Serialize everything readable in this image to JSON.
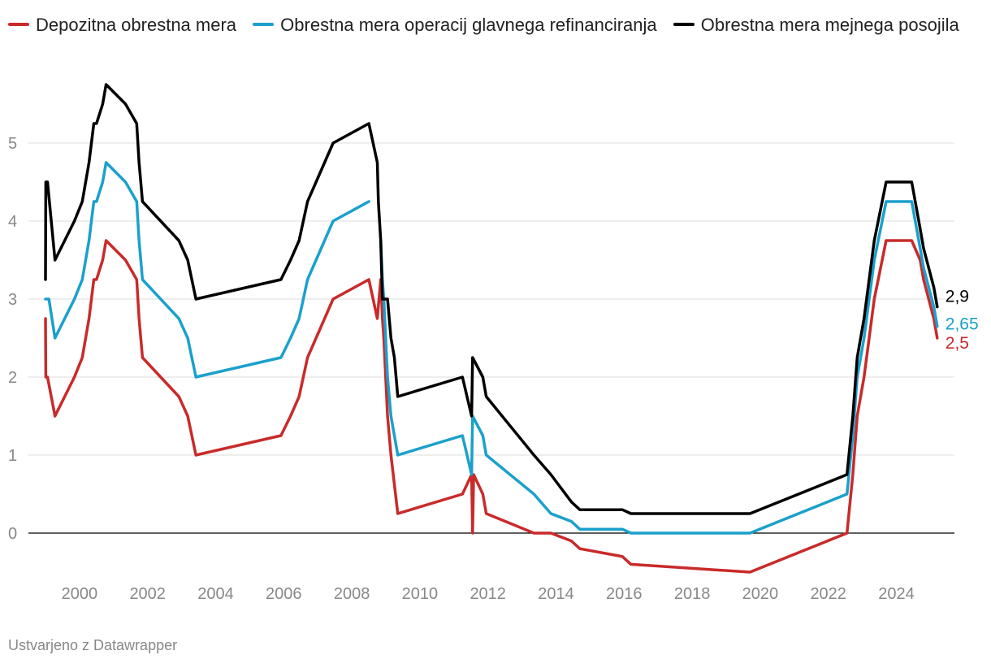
{
  "chart_data": {
    "type": "line",
    "title": "",
    "xlabel": "",
    "ylabel": "",
    "xlim": [
      1998.8,
      2026.2
    ],
    "ylim": [
      -0.6,
      5.8
    ],
    "yticks": [
      "0",
      "1",
      "2",
      "3",
      "4",
      "5"
    ],
    "xticks": [
      "2000",
      "2002",
      "2004",
      "2006",
      "2008",
      "2010",
      "2012",
      "2014",
      "2016",
      "2018",
      "2020",
      "2022",
      "2024"
    ],
    "legend_position": "top",
    "series": [
      {
        "name": "Depozitna obrestna mera",
        "color": "#c92a2a",
        "end_label": "2,5",
        "points": [
          [
            1999.0,
            2.75
          ],
          [
            1999.01,
            2.0
          ],
          [
            1999.06,
            2.0
          ],
          [
            1999.28,
            1.5
          ],
          [
            1999.85,
            2.0
          ],
          [
            2000.08,
            2.25
          ],
          [
            2000.28,
            2.75
          ],
          [
            2000.42,
            3.25
          ],
          [
            2000.5,
            3.25
          ],
          [
            2000.68,
            3.5
          ],
          [
            2000.78,
            3.75
          ],
          [
            2001.35,
            3.5
          ],
          [
            2001.68,
            3.25
          ],
          [
            2001.75,
            2.75
          ],
          [
            2001.85,
            2.25
          ],
          [
            2002.92,
            1.75
          ],
          [
            2003.18,
            1.5
          ],
          [
            2003.42,
            1.0
          ],
          [
            2005.92,
            1.25
          ],
          [
            2006.2,
            1.5
          ],
          [
            2006.45,
            1.75
          ],
          [
            2006.7,
            2.25
          ],
          [
            2006.95,
            2.5
          ],
          [
            2007.45,
            3.0
          ],
          [
            2008.5,
            3.25
          ],
          [
            2008.75,
            2.75
          ],
          [
            2008.85,
            3.25
          ],
          [
            2008.9,
            2.75
          ],
          [
            2008.94,
            2.5
          ],
          [
            2009.05,
            1.5
          ],
          [
            2009.15,
            1.0
          ],
          [
            2009.35,
            0.25
          ],
          [
            2011.25,
            0.5
          ],
          [
            2011.52,
            0.75
          ],
          [
            2011.55,
            0.0
          ],
          [
            2011.58,
            0.75
          ],
          [
            2011.85,
            0.5
          ],
          [
            2011.95,
            0.25
          ],
          [
            2013.35,
            0.0
          ],
          [
            2013.85,
            0.0
          ],
          [
            2014.45,
            -0.1
          ],
          [
            2014.7,
            -0.2
          ],
          [
            2015.95,
            -0.3
          ],
          [
            2016.2,
            -0.4
          ],
          [
            2019.7,
            -0.5
          ],
          [
            2022.55,
            0.0
          ],
          [
            2022.72,
            0.75
          ],
          [
            2022.85,
            1.5
          ],
          [
            2023.05,
            2.0
          ],
          [
            2023.2,
            2.5
          ],
          [
            2023.35,
            3.0
          ],
          [
            2023.7,
            3.75
          ],
          [
            2024.45,
            3.75
          ],
          [
            2024.7,
            3.5
          ],
          [
            2024.8,
            3.25
          ],
          [
            2024.95,
            3.0
          ],
          [
            2025.1,
            2.75
          ],
          [
            2025.2,
            2.5
          ]
        ]
      },
      {
        "name": "Obrestna mera operacij glavnega refinanciranja",
        "color": "#1ba0cc",
        "end_label": "2,65",
        "points": [
          [
            1999.0,
            3.0
          ],
          [
            1999.1,
            3.0
          ],
          [
            1999.28,
            2.5
          ],
          [
            1999.85,
            3.0
          ],
          [
            2000.08,
            3.25
          ],
          [
            2000.28,
            3.75
          ],
          [
            2000.42,
            4.25
          ],
          [
            2000.5,
            4.25
          ],
          [
            2000.68,
            4.5
          ],
          [
            2000.78,
            4.75
          ],
          [
            2001.35,
            4.5
          ],
          [
            2001.68,
            4.25
          ],
          [
            2001.75,
            3.75
          ],
          [
            2001.85,
            3.25
          ],
          [
            2002.92,
            2.75
          ],
          [
            2003.18,
            2.5
          ],
          [
            2003.42,
            2.0
          ],
          [
            2005.92,
            2.25
          ],
          [
            2006.2,
            2.5
          ],
          [
            2006.45,
            2.75
          ],
          [
            2006.7,
            3.25
          ],
          [
            2006.95,
            3.5
          ],
          [
            2007.45,
            4.0
          ],
          [
            2008.5,
            4.25
          ],
          null,
          [
            2008.85,
            3.75
          ],
          [
            2008.9,
            3.25
          ],
          [
            2008.94,
            3.0
          ],
          [
            2009.05,
            2.0
          ],
          [
            2009.15,
            1.5
          ],
          [
            2009.35,
            1.0
          ],
          [
            2011.25,
            1.25
          ],
          [
            2011.52,
            0.75
          ],
          [
            2011.55,
            1.5
          ],
          [
            2011.85,
            1.25
          ],
          [
            2011.95,
            1.0
          ],
          [
            2013.35,
            0.5
          ],
          [
            2013.85,
            0.25
          ],
          [
            2014.45,
            0.15
          ],
          [
            2014.7,
            0.05
          ],
          [
            2015.95,
            0.05
          ],
          [
            2016.2,
            0.0
          ],
          [
            2019.7,
            0.0
          ],
          [
            2022.55,
            0.5
          ],
          [
            2022.72,
            1.25
          ],
          [
            2022.85,
            2.0
          ],
          [
            2023.05,
            2.5
          ],
          [
            2023.2,
            3.0
          ],
          [
            2023.35,
            3.5
          ],
          [
            2023.7,
            4.25
          ],
          [
            2024.45,
            4.25
          ],
          [
            2024.7,
            3.65
          ],
          [
            2024.8,
            3.4
          ],
          [
            2024.95,
            3.15
          ],
          [
            2025.1,
            2.9
          ],
          [
            2025.2,
            2.65
          ]
        ]
      },
      {
        "name": "Obrestna mera mejnega posojila",
        "color": "#000000",
        "end_label": "2,9",
        "points": [
          [
            1999.0,
            3.25
          ],
          [
            1999.01,
            4.5
          ],
          [
            1999.06,
            4.5
          ],
          [
            1999.28,
            3.5
          ],
          [
            1999.85,
            4.0
          ],
          [
            2000.08,
            4.25
          ],
          [
            2000.28,
            4.75
          ],
          [
            2000.42,
            5.25
          ],
          [
            2000.5,
            5.25
          ],
          [
            2000.68,
            5.5
          ],
          [
            2000.78,
            5.75
          ],
          [
            2001.35,
            5.5
          ],
          [
            2001.68,
            5.25
          ],
          [
            2001.75,
            4.75
          ],
          [
            2001.85,
            4.25
          ],
          [
            2002.92,
            3.75
          ],
          [
            2003.18,
            3.5
          ],
          [
            2003.42,
            3.0
          ],
          [
            2005.92,
            3.25
          ],
          [
            2006.2,
            3.5
          ],
          [
            2006.45,
            3.75
          ],
          [
            2006.7,
            4.25
          ],
          [
            2006.95,
            4.5
          ],
          [
            2007.45,
            5.0
          ],
          [
            2008.5,
            5.25
          ],
          [
            2008.75,
            4.75
          ],
          [
            2008.78,
            4.25
          ],
          [
            2008.85,
            3.75
          ],
          [
            2008.9,
            3.0
          ],
          [
            2009.05,
            3.0
          ],
          [
            2009.15,
            2.5
          ],
          [
            2009.25,
            2.25
          ],
          [
            2009.35,
            1.75
          ],
          [
            2011.25,
            2.0
          ],
          [
            2011.52,
            1.5
          ],
          [
            2011.55,
            2.25
          ],
          [
            2011.85,
            2.0
          ],
          [
            2011.95,
            1.75
          ],
          [
            2013.35,
            1.0
          ],
          [
            2013.85,
            0.75
          ],
          [
            2014.45,
            0.4
          ],
          [
            2014.7,
            0.3
          ],
          [
            2015.95,
            0.3
          ],
          [
            2016.2,
            0.25
          ],
          [
            2019.7,
            0.25
          ],
          [
            2022.55,
            0.75
          ],
          [
            2022.72,
            1.5
          ],
          [
            2022.85,
            2.25
          ],
          [
            2023.05,
            2.75
          ],
          [
            2023.2,
            3.25
          ],
          [
            2023.35,
            3.75
          ],
          [
            2023.7,
            4.5
          ],
          [
            2024.45,
            4.5
          ],
          [
            2024.7,
            3.9
          ],
          [
            2024.8,
            3.65
          ],
          [
            2024.95,
            3.4
          ],
          [
            2025.1,
            3.15
          ],
          [
            2025.2,
            2.9
          ]
        ]
      }
    ]
  },
  "footer": {
    "credit": "Ustvarjeno z Datawrapper"
  }
}
